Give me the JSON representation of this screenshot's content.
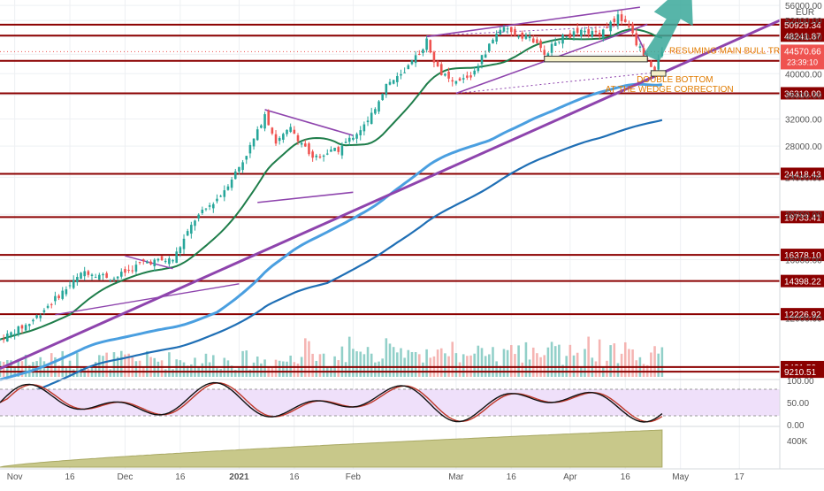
{
  "chart_data": [
    {
      "type": "candlestick",
      "symbol_currency": "EUR",
      "x_tick_labels": [
        "Nov",
        "16",
        "Dec",
        "16",
        "2021",
        "16",
        "Feb",
        "Mar",
        "16",
        "Apr",
        "16",
        "May",
        "17"
      ],
      "x_tick_dates": [
        "2020-11-01",
        "2020-11-16",
        "2020-12-01",
        "2020-12-16",
        "2021-01-01",
        "2021-01-16",
        "2021-02-01",
        "2021-03-01",
        "2021-03-16",
        "2021-04-01",
        "2021-04-16",
        "2021-05-01",
        "2021-05-17"
      ],
      "x_range": [
        "2020-10-28",
        "2021-05-28"
      ],
      "y_scale": "log",
      "y_range": [
        8900,
        57500
      ],
      "y_tick_labels": [
        "56000.00",
        "52000.00",
        "48000.00",
        "44000.00",
        "40000.00",
        "36000.00",
        "32000.00",
        "28000.00",
        "24000.00",
        "20000.00",
        "16000.00",
        "12000.00"
      ],
      "close_approx": [
        [
          "2020-10-28",
          10800
        ],
        [
          "2020-11-05",
          11700
        ],
        [
          "2020-11-12",
          13200
        ],
        [
          "2020-11-20",
          15100
        ],
        [
          "2020-11-28",
          14600
        ],
        [
          "2020-12-06",
          15800
        ],
        [
          "2020-12-14",
          16000
        ],
        [
          "2020-12-20",
          19500
        ],
        [
          "2020-12-27",
          22000
        ],
        [
          "2021-01-02",
          26000
        ],
        [
          "2021-01-06",
          30000
        ],
        [
          "2021-01-08",
          33000
        ],
        [
          "2021-01-11",
          28500
        ],
        [
          "2021-01-15",
          30500
        ],
        [
          "2021-01-21",
          26500
        ],
        [
          "2021-01-28",
          27500
        ],
        [
          "2021-02-05",
          31500
        ],
        [
          "2021-02-10",
          38000
        ],
        [
          "2021-02-15",
          40000
        ],
        [
          "2021-02-21",
          47000
        ],
        [
          "2021-02-24",
          41000
        ],
        [
          "2021-02-28",
          38000
        ],
        [
          "2021-03-05",
          39500
        ],
        [
          "2021-03-10",
          46000
        ],
        [
          "2021-03-13",
          50000
        ],
        [
          "2021-03-17",
          48500
        ],
        [
          "2021-03-21",
          48000
        ],
        [
          "2021-03-25",
          44000
        ],
        [
          "2021-03-29",
          47500
        ],
        [
          "2021-04-03",
          49000
        ],
        [
          "2021-04-09",
          49000
        ],
        [
          "2021-04-14",
          53000
        ],
        [
          "2021-04-17",
          50500
        ],
        [
          "2021-04-19",
          46500
        ],
        [
          "2021-04-22",
          43000
        ],
        [
          "2021-04-24",
          40500
        ],
        [
          "2021-04-26",
          44570.66
        ]
      ],
      "current_price_label": "44570.66",
      "countdown_label": "23:39:10",
      "horizontal_levels": [
        {
          "value": 50929.34,
          "label": "50929.34"
        },
        {
          "value": 48241.87,
          "label": "48241.87"
        },
        {
          "value": 42619.69,
          "label": "42619.69"
        },
        {
          "value": 36310.0,
          "label": "36310.00"
        },
        {
          "value": 24418.43,
          "label": "24418.43"
        },
        {
          "value": 19733.41,
          "label": "19733.41"
        },
        {
          "value": 16378.1,
          "label": "16378.10"
        },
        {
          "value": 14398.22,
          "label": "14398.22"
        },
        {
          "value": 12226.92,
          "label": "12226.92"
        },
        {
          "value": 9421.59,
          "label": "9421.59"
        },
        {
          "value": 9210.51,
          "label": "9210.51"
        }
      ],
      "annotations": [
        "RESUMING MAIN BULL TREND",
        "DOUBLE BOTTOM",
        "AT THE WEDGE CORRECTION"
      ],
      "colors": {
        "up": "#26a69a",
        "down": "#ef5350",
        "level": "#8b0000",
        "trendline": "#8e44ad",
        "ma_short": "#1e7d4a",
        "ma_mid": "#4a9fe0",
        "ma_long": "#1f6fb5",
        "arrow": "#3aa89a",
        "note": "#e07b00"
      }
    },
    {
      "type": "oscillator",
      "y_tick_labels": [
        "100.00",
        "50.00",
        "0.00"
      ],
      "y_range": [
        0,
        100
      ],
      "colors": {
        "k": "#111111",
        "d": "#c0392b",
        "band": "#efe0fa"
      }
    },
    {
      "type": "area",
      "y_tick_labels": [
        "400K"
      ],
      "colors": {
        "fill": "#c8c88a",
        "line": "#a9a964"
      }
    }
  ]
}
